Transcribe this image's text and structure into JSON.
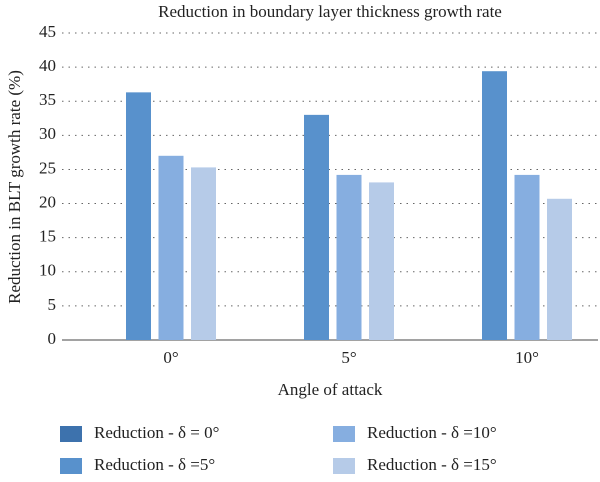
{
  "chart_data": {
    "type": "bar",
    "title": "Reduction in boundary layer thickness growth rate",
    "x_label": "Angle of attack",
    "y_label": "Reduction in BLT growth rate (%)",
    "categories": [
      "0°",
      "5°",
      "10°"
    ],
    "series": [
      {
        "name": "Reduction - δ = 0°",
        "color": "#3d72ad",
        "values": [
          null,
          null,
          null
        ]
      },
      {
        "name": "Reduction - δ =5°",
        "color": "#5891cc",
        "values": [
          36.3,
          33.0,
          39.4
        ]
      },
      {
        "name": "Reduction - δ =10°",
        "color": "#86aee0",
        "values": [
          27.0,
          24.2,
          24.2
        ]
      },
      {
        "name": "Reduction - δ =15°",
        "color": "#b6cbe8",
        "values": [
          25.3,
          23.1,
          20.7
        ]
      }
    ],
    "ylim": [
      0,
      45
    ],
    "yticks": [
      0,
      5,
      10,
      15,
      20,
      25,
      30,
      35,
      40,
      45
    ],
    "grid": true
  }
}
